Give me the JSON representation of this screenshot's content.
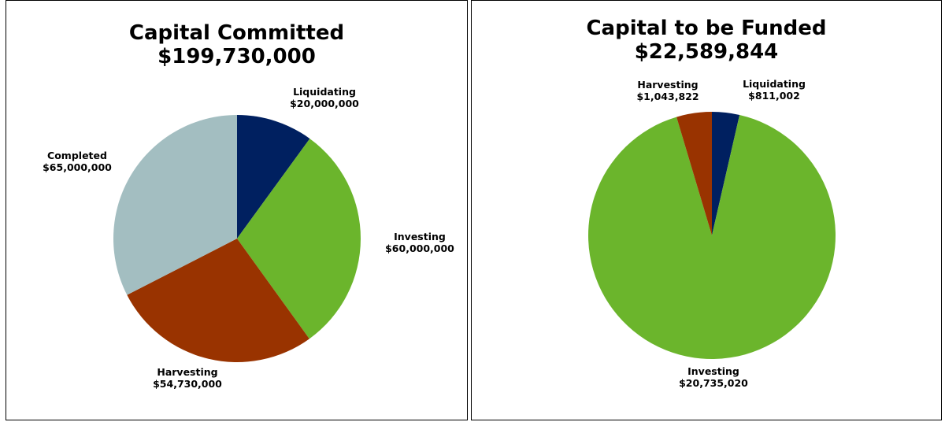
{
  "chart_data": [
    {
      "type": "pie",
      "title": "Capital Committed",
      "subtitle": "$199,730,000",
      "slices": [
        {
          "name": "Liquidating",
          "value": 20000000,
          "label": "$20,000,000",
          "color": "#002060"
        },
        {
          "name": "Investing",
          "value": 60000000,
          "label": "$60,000,000",
          "color": "#6BB52C"
        },
        {
          "name": "Harvesting",
          "value": 54730000,
          "label": "$54,730,000",
          "color": "#993300"
        },
        {
          "name": "Completed",
          "value": 65000000,
          "label": "$65,000,000",
          "color": "#A3BEC1"
        }
      ]
    },
    {
      "type": "pie",
      "title": "Capital to be Funded",
      "subtitle": "$22,589,844",
      "slices": [
        {
          "name": "Liquidating",
          "value": 811002,
          "label": "$811,002",
          "color": "#002060"
        },
        {
          "name": "Investing",
          "value": 20735020,
          "label": "$20,735,020",
          "color": "#6BB52C"
        },
        {
          "name": "Harvesting",
          "value": 1043822,
          "label": "$1,043,822",
          "color": "#993300"
        }
      ]
    }
  ]
}
